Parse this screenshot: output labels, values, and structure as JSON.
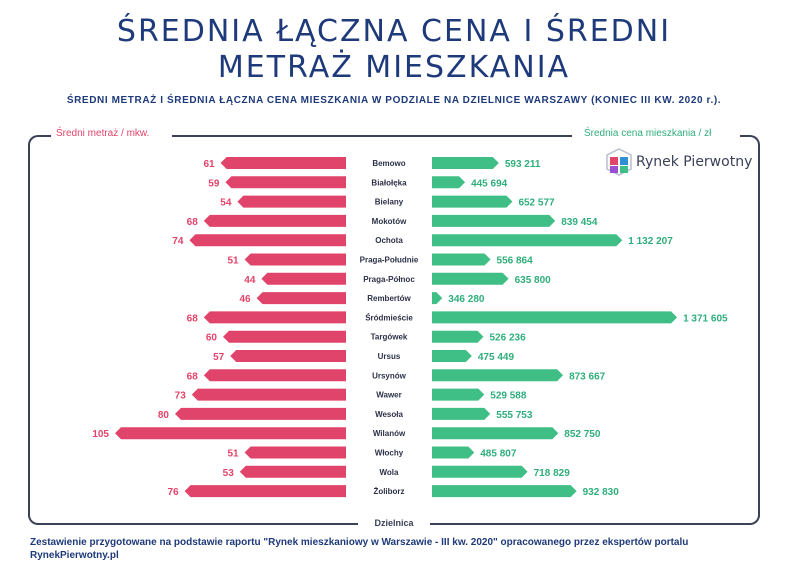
{
  "title_line1": "ŚREDNIA ŁĄCZNA CENA I ŚREDNI",
  "title_line2": "METRAŻ MIESZKANIA",
  "subtitle": "ŚREDNI METRAŻ I ŚREDNIA ŁĄCZNA CENA MIESZKANIA W PODZIALE NA DZIELNICE WARSZAWY (KONIEC III KW. 2020 r.).",
  "logo_text": "Rynek Pierwotny",
  "footer": "Zestawienie przygotowane na podstawie raportu \"Rynek mieszkaniowy w Warszawie - III kw. 2020\" opracowanego przez ekspertów portalu RynekPierwotny.pl",
  "colors": {
    "area": "#e0446a",
    "price": "#3fbf86",
    "title": "#1e3a7a"
  },
  "chart_data": {
    "type": "bar",
    "layout": "butterfly",
    "left_axis_label": "Średni metraż / mkw.",
    "right_axis_label": "Średnia cena mieszkania / zł",
    "category_axis_label": "Dzielnica",
    "categories": [
      "Bemowo",
      "Białołęka",
      "Bielany",
      "Mokotów",
      "Ochota",
      "Praga-Południe",
      "Praga-Północ",
      "Rembertów",
      "Śródmieście",
      "Targówek",
      "Ursus",
      "Ursynów",
      "Wawer",
      "Wesoła",
      "Wilanów",
      "Włochy",
      "Wola",
      "Żoliborz"
    ],
    "series": [
      {
        "name": "Średni metraż / mkw.",
        "values": [
          61,
          59,
          54,
          68,
          74,
          51,
          44,
          46,
          68,
          60,
          57,
          68,
          73,
          80,
          105,
          51,
          53,
          76
        ],
        "labels": [
          "61",
          "59",
          "54",
          "68",
          "74",
          "51",
          "44",
          "46",
          "68",
          "60",
          "57",
          "68",
          "73",
          "80",
          "105",
          "51",
          "53",
          "76"
        ]
      },
      {
        "name": "Średnia cena mieszkania / zł",
        "values": [
          593211,
          445694,
          652577,
          839454,
          1132207,
          556864,
          635800,
          346280,
          1371605,
          526236,
          475449,
          873667,
          529588,
          555753,
          852750,
          485807,
          718829,
          932830
        ],
        "labels": [
          "593 211",
          "445 694",
          "652 577",
          "839 454",
          "1 132 207",
          "556 864",
          "635 800",
          "346 280",
          "1 371 605",
          "526 236",
          "475 449",
          "873 667",
          "529 588",
          "555 753",
          "852 750",
          "485 807",
          "718 829",
          "932 830"
        ]
      }
    ]
  }
}
